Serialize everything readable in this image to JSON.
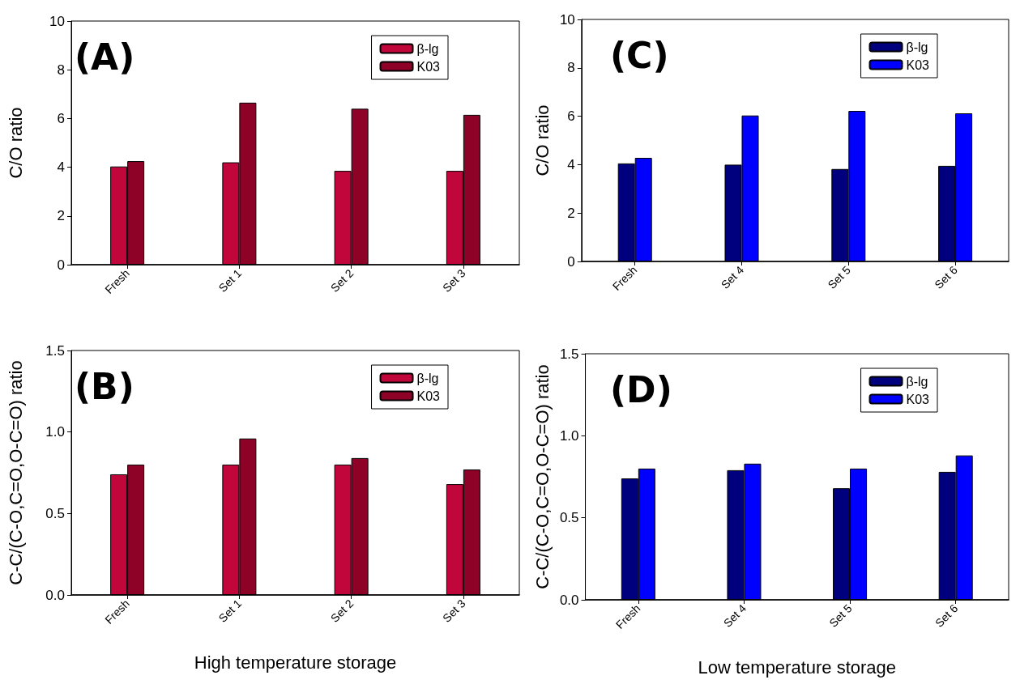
{
  "chart_data": [
    {
      "type": "bar",
      "annotations": [
        "(A)"
      ],
      "ylabel": "C/O ratio",
      "categories": [
        "Fresh",
        "Set 1",
        "Set 2",
        "Set 3"
      ],
      "series": [
        {
          "name": "β-lg",
          "color": "#c0063a",
          "values": [
            4.03,
            4.2,
            3.85,
            3.85
          ]
        },
        {
          "name": "K03",
          "color": "#8e0228",
          "values": [
            4.25,
            6.65,
            6.4,
            6.15
          ]
        }
      ],
      "ylim": [
        0,
        10
      ],
      "yticks": [
        0,
        2,
        4,
        6,
        8,
        10
      ],
      "legend": "top right",
      "grid": false
    },
    {
      "type": "bar",
      "annotations": [
        "(B)"
      ],
      "ylabel": "C-C/(C-O,C=O,O-C=O) ratio",
      "xlabel": "High temperature storage",
      "categories": [
        "Fresh",
        "Set 1",
        "Set 2",
        "Set 3"
      ],
      "series": [
        {
          "name": "β-lg",
          "color": "#c0063a",
          "values": [
            0.74,
            0.8,
            0.8,
            0.68
          ]
        },
        {
          "name": "K03",
          "color": "#8e0228",
          "values": [
            0.8,
            0.96,
            0.84,
            0.77
          ]
        }
      ],
      "ylim": [
        0,
        1.5
      ],
      "yticks": [
        {
          "value": 0,
          "label": "0.0"
        },
        {
          "value": 0.5,
          "label": "0.5"
        },
        {
          "value": 1,
          "label": "1.0"
        },
        {
          "value": 1.5,
          "label": "1.5"
        }
      ],
      "legend": "top right",
      "grid": false
    },
    {
      "type": "bar",
      "annotations": [
        "(C)"
      ],
      "ylabel": "C/O ratio",
      "categories": [
        "Fresh",
        "Set 4",
        "Set 5",
        "Set 6"
      ],
      "series": [
        {
          "name": "β-lg",
          "color": "#00007f",
          "values": [
            4.05,
            4.0,
            3.82,
            3.95
          ]
        },
        {
          "name": "K03",
          "color": "#0000ff",
          "values": [
            4.28,
            6.03,
            6.22,
            6.12
          ]
        }
      ],
      "ylim": [
        0,
        10
      ],
      "yticks": [
        0,
        2,
        4,
        6,
        8,
        10
      ],
      "legend": "top right",
      "grid": false
    },
    {
      "type": "bar",
      "annotations": [
        "(D)"
      ],
      "ylabel": "C-C/(C-O,C=O,O-C=O) ratio",
      "xlabel": "Low temperature storage",
      "categories": [
        "Fresh",
        "Set 4",
        "Set 5",
        "Set 6"
      ],
      "series": [
        {
          "name": "β-lg",
          "color": "#00007f",
          "values": [
            0.74,
            0.79,
            0.68,
            0.78
          ]
        },
        {
          "name": "K03",
          "color": "#0000ff",
          "values": [
            0.8,
            0.83,
            0.8,
            0.88
          ]
        }
      ],
      "ylim": [
        0,
        1.5
      ],
      "yticks": [
        {
          "value": 0,
          "label": "0.0"
        },
        {
          "value": 0.5,
          "label": "0.5"
        },
        {
          "value": 1,
          "label": "1.0"
        },
        {
          "value": 1.5,
          "label": "1.5"
        }
      ],
      "legend": "top right",
      "grid": false
    }
  ]
}
